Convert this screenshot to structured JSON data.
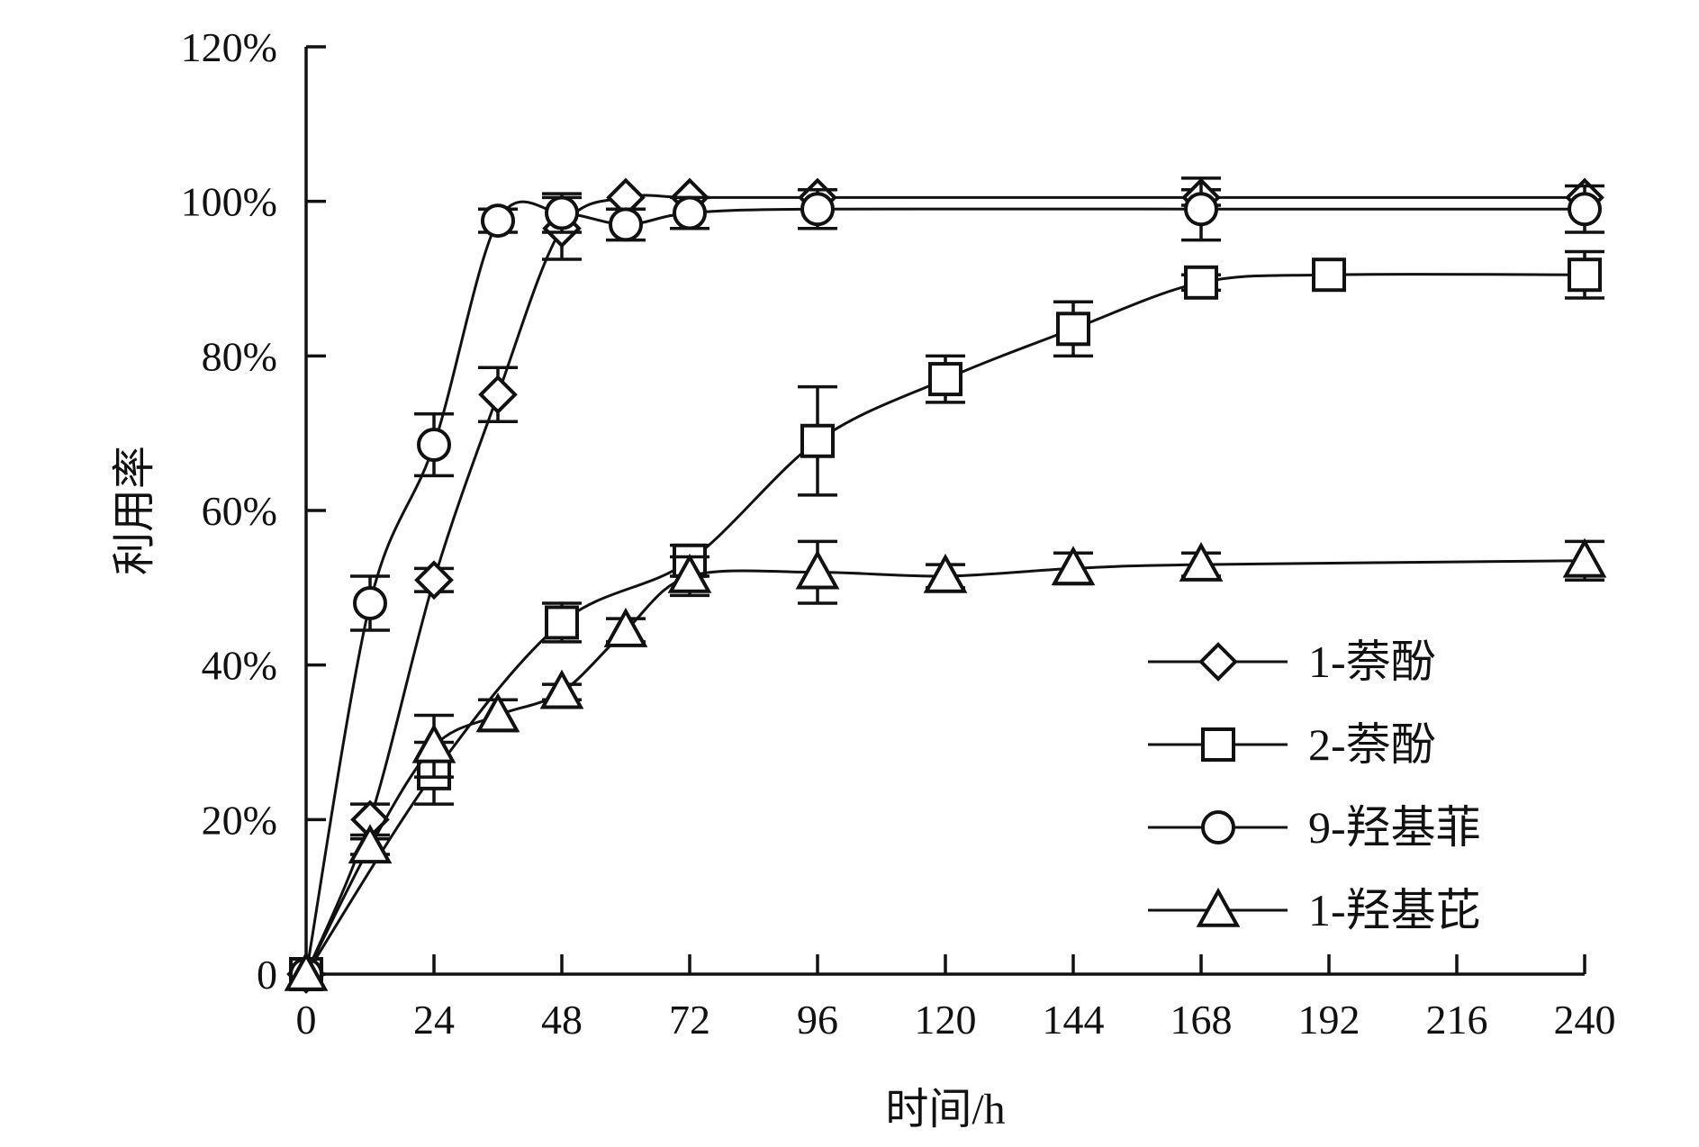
{
  "chart_data": {
    "type": "line",
    "title": "",
    "xlabel": "时间/h",
    "ylabel": "利用率",
    "xlim": [
      0,
      240
    ],
    "ylim": [
      0,
      120
    ],
    "xticks": [
      0,
      24,
      48,
      72,
      96,
      120,
      144,
      168,
      192,
      216,
      240
    ],
    "yticks": [
      0,
      20,
      40,
      60,
      80,
      100,
      120
    ],
    "x_tick_labels": [
      "0",
      "24",
      "48",
      "72",
      "96",
      "120",
      "144",
      "168",
      "192",
      "216",
      "240"
    ],
    "y_tick_labels": [
      "0",
      "20%",
      "40%",
      "60%",
      "80%",
      "100%",
      "120%"
    ],
    "legend_position": "bottom-right",
    "series": [
      {
        "name": "1-萘酚",
        "marker": "diamond",
        "x": [
          0,
          12,
          24,
          36,
          48,
          60,
          72,
          96,
          168,
          240
        ],
        "y": [
          0,
          20,
          51,
          75,
          96.5,
          100.5,
          100.5,
          100.5,
          100.5,
          100.5
        ],
        "err": [
          0,
          2,
          1.5,
          3.5,
          4,
          0,
          0,
          0,
          1,
          0
        ]
      },
      {
        "name": "2-萘酚",
        "marker": "square",
        "x": [
          0,
          24,
          48,
          72,
          96,
          120,
          144,
          168,
          192,
          240
        ],
        "y": [
          0,
          26,
          45.5,
          53.5,
          69,
          77,
          83.5,
          89.5,
          90.5,
          90.5
        ],
        "err": [
          0,
          4,
          2.5,
          2,
          7,
          3,
          3.5,
          1,
          0,
          3
        ]
      },
      {
        "name": "9-羟基菲",
        "marker": "circle",
        "x": [
          0,
          12,
          24,
          36,
          48,
          60,
          72,
          96,
          168,
          240
        ],
        "y": [
          0,
          48,
          68.5,
          97.5,
          98.5,
          97,
          98.5,
          99,
          99,
          99
        ],
        "err": [
          0,
          3.5,
          4,
          1.5,
          2.5,
          2,
          2,
          2.5,
          4,
          3
        ]
      },
      {
        "name": "1-羟基芘",
        "marker": "triangle",
        "x": [
          0,
          12,
          24,
          36,
          48,
          60,
          72,
          96,
          120,
          144,
          168,
          240
        ],
        "y": [
          0,
          16.5,
          29.5,
          33.5,
          36.5,
          44.5,
          51.5,
          52,
          51.5,
          52.5,
          53,
          53.5
        ],
        "err": [
          0,
          1,
          4,
          2,
          1,
          1.5,
          2.5,
          4,
          1.5,
          2,
          1.5,
          2.5
        ]
      }
    ]
  }
}
